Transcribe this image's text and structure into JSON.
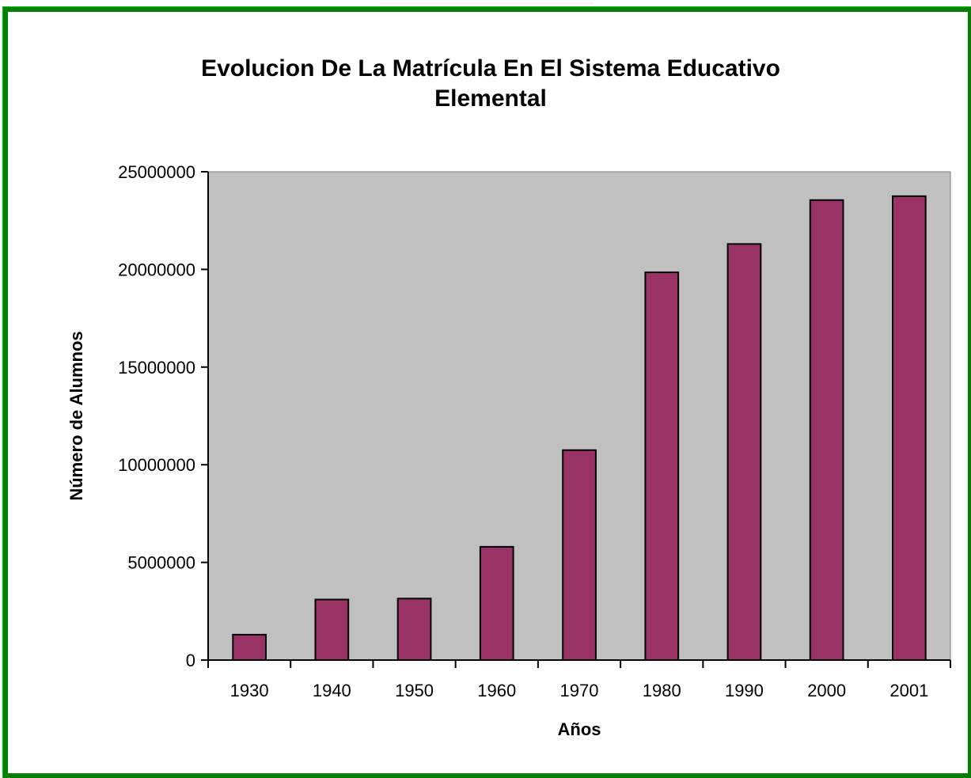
{
  "chart_data": {
    "type": "bar",
    "title": "Evolucion De La Matrícula En El Sistema Educativo Elemental",
    "title_lines": [
      "Evolucion De La Matrícula En El Sistema Educativo",
      "Elemental"
    ],
    "xlabel": "Años",
    "ylabel": "Número de Alumnos",
    "categories": [
      "1930",
      "1940",
      "1950",
      "1960",
      "1970",
      "1980",
      "1990",
      "2000",
      "2001"
    ],
    "values": [
      1300000,
      3100000,
      3150000,
      5800000,
      10750000,
      19850000,
      21300000,
      23550000,
      23750000
    ],
    "ylim": [
      0,
      25000000
    ],
    "yticks": [
      "0",
      "5000000",
      "10000000",
      "15000000",
      "20000000",
      "25000000"
    ],
    "grid": false,
    "legend": "none",
    "colors": {
      "bar_fill": "#993366",
      "bar_stroke": "#000000",
      "plot_background": "#c0c0c0",
      "frame_border": "#008000"
    }
  }
}
